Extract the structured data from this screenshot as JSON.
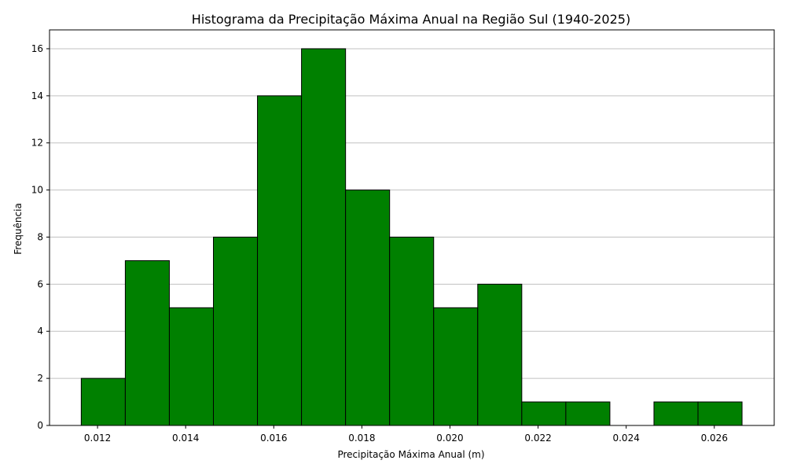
{
  "chart_data": {
    "type": "bar",
    "title": "Histograma da Precipitação Máxima Anual na Região Sul (1940-2025)",
    "xlabel": "Precipitação Máxima Anual (m)",
    "ylabel": "Frequência",
    "bins": [
      {
        "start": 0.01163,
        "end": 0.01263,
        "count": 2
      },
      {
        "start": 0.01263,
        "end": 0.01363,
        "count": 7
      },
      {
        "start": 0.01363,
        "end": 0.01463,
        "count": 5
      },
      {
        "start": 0.01463,
        "end": 0.01563,
        "count": 8
      },
      {
        "start": 0.01563,
        "end": 0.01663,
        "count": 14
      },
      {
        "start": 0.01663,
        "end": 0.01763,
        "count": 16
      },
      {
        "start": 0.01763,
        "end": 0.01863,
        "count": 10
      },
      {
        "start": 0.01863,
        "end": 0.01963,
        "count": 8
      },
      {
        "start": 0.01963,
        "end": 0.02063,
        "count": 5
      },
      {
        "start": 0.02063,
        "end": 0.02163,
        "count": 6
      },
      {
        "start": 0.02163,
        "end": 0.02263,
        "count": 1
      },
      {
        "start": 0.02263,
        "end": 0.02363,
        "count": 1
      },
      {
        "start": 0.02363,
        "end": 0.02463,
        "count": 0
      },
      {
        "start": 0.02463,
        "end": 0.02563,
        "count": 1
      },
      {
        "start": 0.02563,
        "end": 0.02663,
        "count": 1
      }
    ],
    "xlim": [
      0.01091,
      0.02736
    ],
    "ylim": [
      0,
      16.8
    ],
    "xticks": [
      {
        "value": 0.012,
        "label": "0.012"
      },
      {
        "value": 0.014,
        "label": "0.014"
      },
      {
        "value": 0.016,
        "label": "0.016"
      },
      {
        "value": 0.018,
        "label": "0.018"
      },
      {
        "value": 0.02,
        "label": "0.020"
      },
      {
        "value": 0.022,
        "label": "0.022"
      },
      {
        "value": 0.024,
        "label": "0.024"
      },
      {
        "value": 0.026,
        "label": "0.026"
      }
    ],
    "yticks": [
      {
        "value": 0,
        "label": "0"
      },
      {
        "value": 2,
        "label": "2"
      },
      {
        "value": 4,
        "label": "4"
      },
      {
        "value": 6,
        "label": "6"
      },
      {
        "value": 8,
        "label": "8"
      },
      {
        "value": 10,
        "label": "10"
      },
      {
        "value": 12,
        "label": "12"
      },
      {
        "value": 14,
        "label": "14"
      },
      {
        "value": 16,
        "label": "16"
      }
    ],
    "grid": {
      "y": true,
      "x": false
    },
    "colors": {
      "bar_fill": "#008000",
      "bar_edge": "#000000",
      "grid": "#c0c0c0",
      "axis": "#000000"
    }
  }
}
